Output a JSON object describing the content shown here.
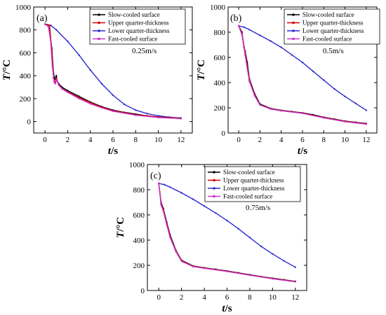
{
  "chart_data": [
    {
      "type": "line",
      "panel_label": "(a)",
      "condition": "0.25m/s",
      "xlabel": {
        "var": "t",
        "unit": "/s"
      },
      "ylabel": {
        "var": "T",
        "unit": "/°C"
      },
      "xlim": [
        -1,
        13
      ],
      "ylim": [
        -100,
        1000
      ],
      "xticks": [
        0,
        2,
        4,
        6,
        8,
        10,
        12
      ],
      "yticks": [
        0,
        200,
        400,
        600,
        800,
        1000
      ],
      "legend_position": "top-right",
      "series": [
        {
          "name": "Slow-cooled surface",
          "color": "#000000",
          "points": [
            [
              0,
              850
            ],
            [
              0.2,
              845
            ],
            [
              0.4,
              800
            ],
            [
              0.6,
              640
            ],
            [
              0.75,
              420
            ],
            [
              0.85,
              370
            ],
            [
              1.0,
              400
            ],
            [
              1.05,
              360
            ],
            [
              1.2,
              330
            ],
            [
              1.5,
              300
            ],
            [
              2,
              270
            ],
            [
              3,
              220
            ],
            [
              4,
              170
            ],
            [
              5,
              130
            ],
            [
              6,
              100
            ],
            [
              7,
              80
            ],
            [
              8,
              65
            ],
            [
              9,
              50
            ],
            [
              10,
              40
            ],
            [
              11,
              35
            ],
            [
              12,
              30
            ]
          ]
        },
        {
          "name": "Upper quarter-thickness",
          "color": "#cc0000",
          "points": [
            [
              0,
              850
            ],
            [
              0.4,
              840
            ],
            [
              0.6,
              620
            ],
            [
              0.75,
              380
            ],
            [
              0.85,
              340
            ],
            [
              1.0,
              370
            ],
            [
              1.2,
              320
            ],
            [
              1.5,
              290
            ],
            [
              2,
              260
            ],
            [
              3,
              210
            ],
            [
              4,
              165
            ],
            [
              5,
              125
            ],
            [
              6,
              95
            ],
            [
              8,
              60
            ],
            [
              10,
              40
            ],
            [
              12,
              28
            ]
          ]
        },
        {
          "name": "Lower quarter-thickness",
          "color": "#2a2ad0",
          "points": [
            [
              0,
              850
            ],
            [
              0.5,
              840
            ],
            [
              1,
              800
            ],
            [
              2,
              700
            ],
            [
              3,
              580
            ],
            [
              4,
              450
            ],
            [
              5,
              330
            ],
            [
              6,
              230
            ],
            [
              7,
              150
            ],
            [
              8,
              100
            ],
            [
              9,
              70
            ],
            [
              10,
              50
            ],
            [
              11,
              38
            ],
            [
              12,
              30
            ]
          ]
        },
        {
          "name": "Fast-cooled surface",
          "color": "#cc33cc",
          "points": [
            [
              0,
              850
            ],
            [
              0.3,
              830
            ],
            [
              0.5,
              700
            ],
            [
              0.65,
              480
            ],
            [
              0.8,
              350
            ],
            [
              0.9,
              330
            ],
            [
              1.05,
              365
            ],
            [
              1.2,
              320
            ],
            [
              1.5,
              285
            ],
            [
              2,
              255
            ],
            [
              3,
              200
            ],
            [
              4,
              155
            ],
            [
              5,
              120
            ],
            [
              6,
              90
            ],
            [
              8,
              55
            ],
            [
              10,
              35
            ],
            [
              12,
              25
            ]
          ]
        }
      ]
    },
    {
      "type": "line",
      "panel_label": "(b)",
      "condition": "0.5m/s",
      "xlabel": {
        "var": "t",
        "unit": "/s"
      },
      "ylabel": {
        "var": "T",
        "unit": "/°C"
      },
      "xlim": [
        -1,
        13
      ],
      "ylim": [
        0,
        1000
      ],
      "xticks": [
        0,
        2,
        4,
        6,
        8,
        10,
        12
      ],
      "yticks": [
        0,
        200,
        400,
        600,
        800,
        1000
      ],
      "legend_position": "top-right",
      "series": [
        {
          "name": "Slow-cooled surface",
          "color": "#000000",
          "points": [
            [
              0,
              850
            ],
            [
              0.3,
              800
            ],
            [
              0.5,
              680
            ],
            [
              0.6,
              650
            ],
            [
              0.8,
              560
            ],
            [
              1.0,
              430
            ],
            [
              1.5,
              310
            ],
            [
              2,
              230
            ],
            [
              3,
              195
            ],
            [
              4,
              180
            ],
            [
              5,
              170
            ],
            [
              6,
              160
            ],
            [
              7,
              145
            ],
            [
              8,
              125
            ],
            [
              9,
              110
            ],
            [
              10,
              95
            ],
            [
              11,
              85
            ],
            [
              12,
              75
            ]
          ]
        },
        {
          "name": "Upper quarter-thickness",
          "color": "#cc0000",
          "points": [
            [
              0,
              850
            ],
            [
              0.3,
              790
            ],
            [
              0.6,
              640
            ],
            [
              1.0,
              420
            ],
            [
              1.5,
              300
            ],
            [
              2,
              225
            ],
            [
              3,
              192
            ],
            [
              4,
              178
            ],
            [
              6,
              158
            ],
            [
              8,
              123
            ],
            [
              10,
              93
            ],
            [
              12,
              73
            ]
          ]
        },
        {
          "name": "Lower quarter-thickness",
          "color": "#2a2ad0",
          "points": [
            [
              0,
              850
            ],
            [
              0.5,
              840
            ],
            [
              1,
              820
            ],
            [
              2,
              775
            ],
            [
              3,
              730
            ],
            [
              4,
              680
            ],
            [
              5,
              620
            ],
            [
              6,
              560
            ],
            [
              7,
              490
            ],
            [
              8,
              420
            ],
            [
              9,
              350
            ],
            [
              10,
              290
            ],
            [
              11,
              235
            ],
            [
              12,
              180
            ]
          ]
        },
        {
          "name": "Fast-cooled surface",
          "color": "#cc33cc",
          "points": [
            [
              0,
              850
            ],
            [
              0.3,
              780
            ],
            [
              0.6,
              620
            ],
            [
              1.0,
              410
            ],
            [
              1.5,
              295
            ],
            [
              2,
              222
            ],
            [
              3,
              190
            ],
            [
              4,
              176
            ],
            [
              6,
              156
            ],
            [
              8,
              120
            ],
            [
              10,
              90
            ],
            [
              12,
              70
            ]
          ]
        }
      ]
    },
    {
      "type": "line",
      "panel_label": "(c)",
      "condition": "0.75m/s",
      "xlabel": {
        "var": "t",
        "unit": "/s"
      },
      "ylabel": {
        "var": "T",
        "unit": "/°C"
      },
      "xlim": [
        -1,
        13
      ],
      "ylim": [
        0,
        1000
      ],
      "xticks": [
        0,
        2,
        4,
        6,
        8,
        10,
        12
      ],
      "yticks": [
        0,
        200,
        400,
        600,
        800,
        1000
      ],
      "legend_position": "top-right",
      "series": [
        {
          "name": "Slow-cooled surface",
          "color": "#000000",
          "points": [
            [
              0,
              850
            ],
            [
              0.2,
              700
            ],
            [
              0.4,
              650
            ],
            [
              0.7,
              540
            ],
            [
              1.0,
              440
            ],
            [
              1.5,
              320
            ],
            [
              2,
              240
            ],
            [
              3,
              195
            ],
            [
              4,
              180
            ],
            [
              5,
              168
            ],
            [
              6,
              155
            ],
            [
              7,
              140
            ],
            [
              8,
              125
            ],
            [
              9,
              110
            ],
            [
              10,
              97
            ],
            [
              11,
              85
            ],
            [
              12,
              73
            ]
          ]
        },
        {
          "name": "Upper quarter-thickness",
          "color": "#cc0000",
          "points": [
            [
              0,
              850
            ],
            [
              0.2,
              690
            ],
            [
              0.4,
              640
            ],
            [
              0.7,
              530
            ],
            [
              1.0,
              430
            ],
            [
              1.5,
              315
            ],
            [
              2,
              236
            ],
            [
              3,
              193
            ],
            [
              4,
              178
            ],
            [
              6,
              153
            ],
            [
              8,
              123
            ],
            [
              10,
              95
            ],
            [
              12,
              71
            ]
          ]
        },
        {
          "name": "Lower quarter-thickness",
          "color": "#2a2ad0",
          "points": [
            [
              0,
              850
            ],
            [
              0.5,
              840
            ],
            [
              1,
              820
            ],
            [
              2,
              775
            ],
            [
              3,
              725
            ],
            [
              4,
              670
            ],
            [
              5,
              615
            ],
            [
              6,
              555
            ],
            [
              7,
              490
            ],
            [
              8,
              420
            ],
            [
              9,
              350
            ],
            [
              10,
              290
            ],
            [
              11,
              235
            ],
            [
              12,
              185
            ]
          ]
        },
        {
          "name": "Fast-cooled surface",
          "color": "#cc33cc",
          "points": [
            [
              0,
              850
            ],
            [
              0.2,
              680
            ],
            [
              0.4,
              630
            ],
            [
              0.7,
              520
            ],
            [
              1.0,
              420
            ],
            [
              1.5,
              310
            ],
            [
              2,
              232
            ],
            [
              3,
              190
            ],
            [
              4,
              176
            ],
            [
              6,
              151
            ],
            [
              8,
              121
            ],
            [
              10,
              93
            ],
            [
              12,
              69
            ]
          ]
        }
      ]
    }
  ]
}
